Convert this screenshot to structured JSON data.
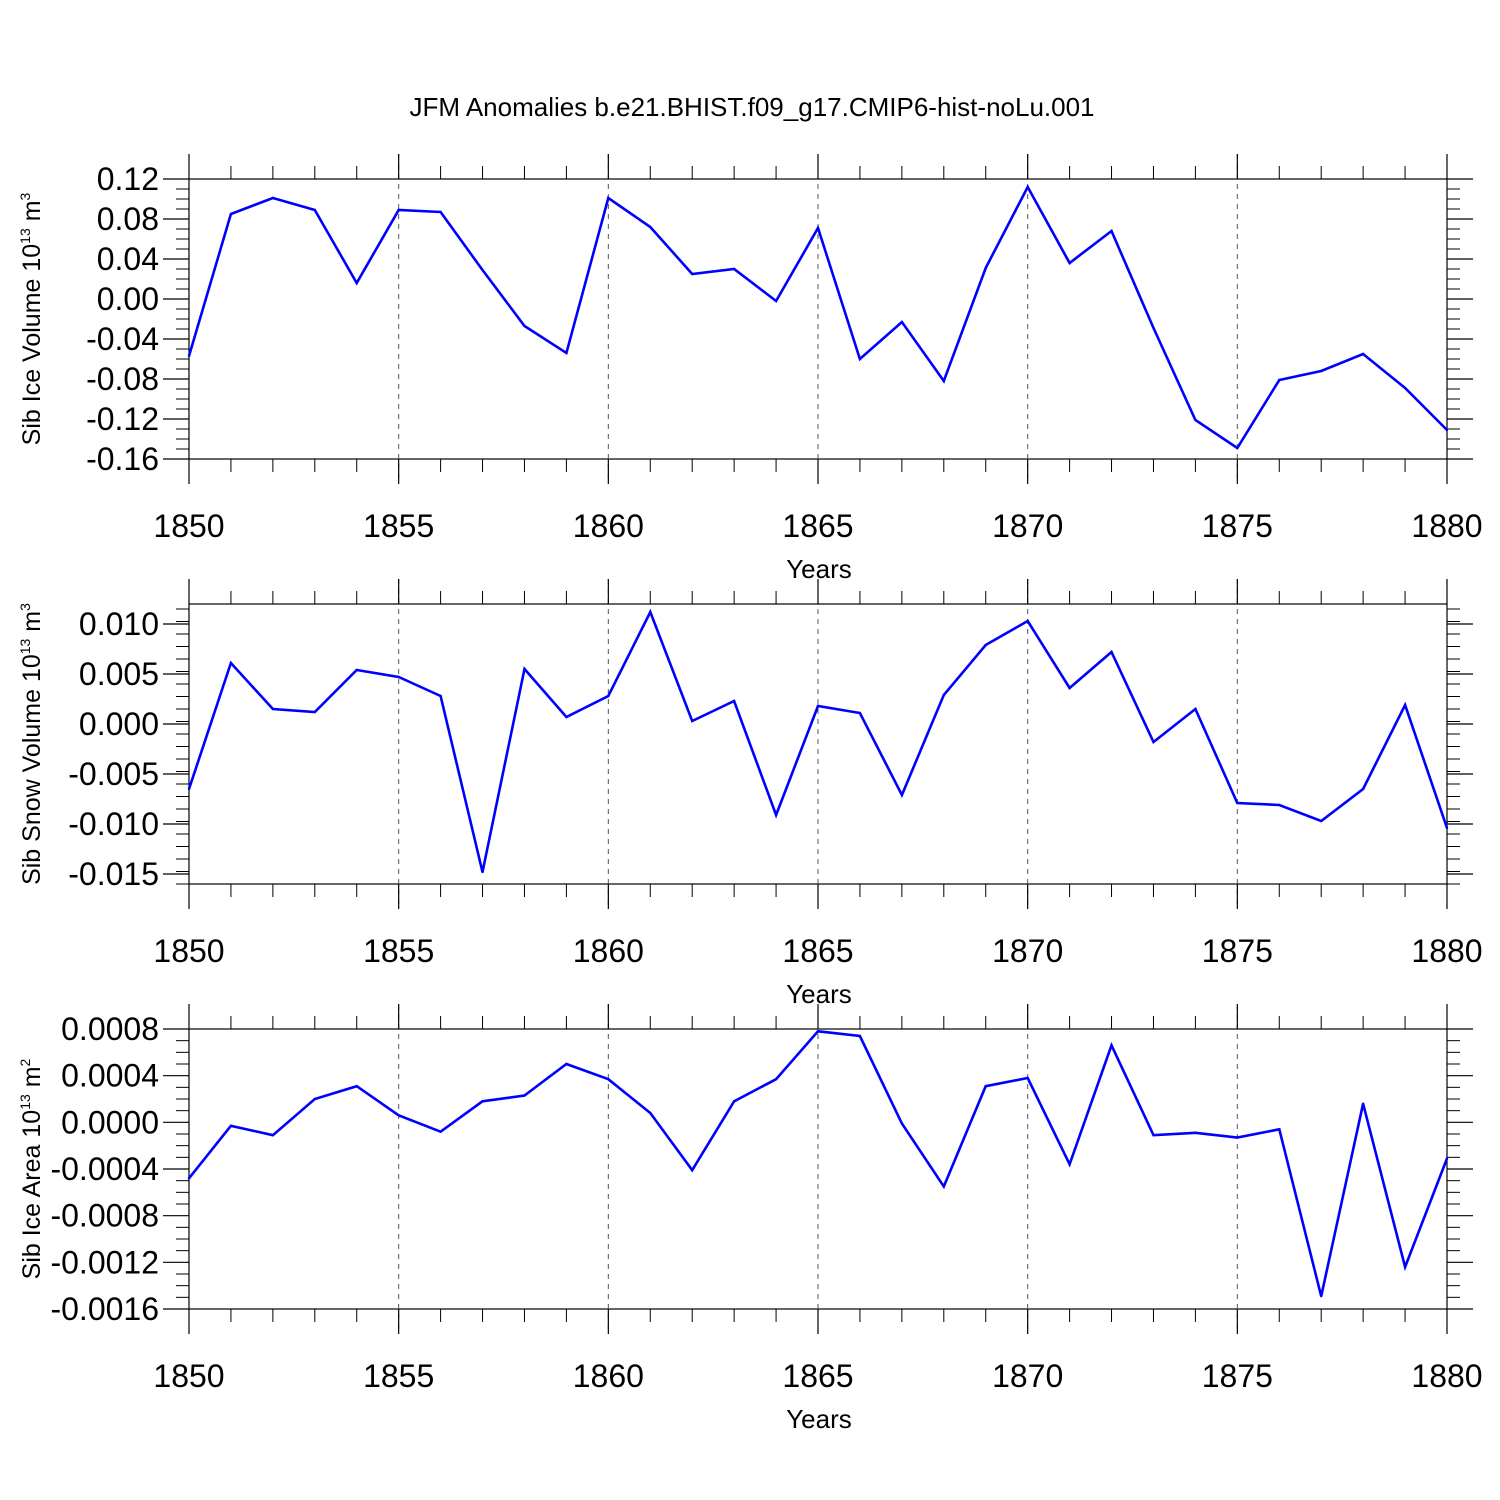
{
  "title": "JFM Anomalies b.e21.BHIST.f09_g17.CMIP6-hist-noLu.001",
  "colors": {
    "line": "#0000ff",
    "axis": "#000000",
    "grid": "#000000"
  },
  "chart_data": [
    {
      "type": "line",
      "ylabel": "Sib Ice Volume 10",
      "ylabel_exp": "13",
      "ylabel_unit": " m",
      "ylabel_unit_exp": "3",
      "xlabel": "Years",
      "xlim": [
        1850,
        1880
      ],
      "ylim": [
        -0.16,
        0.12
      ],
      "xticks": [
        1850,
        1855,
        1860,
        1865,
        1870,
        1875,
        1880
      ],
      "xtick_labels": [
        "1850",
        "1855",
        "1860",
        "1865",
        "1870",
        "1875",
        "1880"
      ],
      "yticks": [
        0.12,
        0.08,
        0.04,
        0.0,
        -0.04,
        -0.08,
        -0.12,
        -0.16
      ],
      "ytick_labels": [
        "0.12",
        "0.08",
        "0.04",
        "0.00",
        "-0.04",
        "-0.08",
        "-0.12",
        "-0.16"
      ],
      "series": [
        {
          "name": "Sib Ice Volume",
          "x": [
            1850,
            1851,
            1852,
            1853,
            1854,
            1855,
            1856,
            1857,
            1858,
            1859,
            1860,
            1861,
            1862,
            1863,
            1864,
            1865,
            1866,
            1867,
            1868,
            1869,
            1870,
            1871,
            1872,
            1873,
            1874,
            1875,
            1876,
            1877,
            1878,
            1879,
            1880
          ],
          "y": [
            -0.057,
            0.085,
            0.101,
            0.089,
            0.016,
            0.089,
            0.087,
            0.029,
            -0.027,
            -0.054,
            0.101,
            0.072,
            0.025,
            0.03,
            -0.002,
            0.071,
            -0.06,
            -0.023,
            -0.082,
            0.031,
            0.112,
            0.036,
            0.068,
            -0.029,
            -0.121,
            -0.149,
            -0.081,
            -0.072,
            -0.055,
            -0.089,
            -0.131
          ]
        }
      ]
    },
    {
      "type": "line",
      "ylabel": "Sib Snow Volume 10",
      "ylabel_exp": "13",
      "ylabel_unit": " m",
      "ylabel_unit_exp": "3",
      "xlabel": "Years",
      "xlim": [
        1850,
        1880
      ],
      "ylim": [
        -0.016,
        0.012
      ],
      "xticks": [
        1850,
        1855,
        1860,
        1865,
        1870,
        1875,
        1880
      ],
      "xtick_labels": [
        "1850",
        "1855",
        "1860",
        "1865",
        "1870",
        "1875",
        "1880"
      ],
      "yticks": [
        0.01,
        0.005,
        0.0,
        -0.005,
        -0.01,
        -0.015
      ],
      "ytick_labels": [
        "0.010",
        "0.005",
        "0.000",
        "-0.005",
        "-0.010",
        "-0.015"
      ],
      "series": [
        {
          "name": "Sib Snow Volume",
          "x": [
            1850,
            1851,
            1852,
            1853,
            1854,
            1855,
            1856,
            1857,
            1858,
            1859,
            1860,
            1861,
            1862,
            1863,
            1864,
            1865,
            1866,
            1867,
            1868,
            1869,
            1870,
            1871,
            1872,
            1873,
            1874,
            1875,
            1876,
            1877,
            1878,
            1879,
            1880
          ],
          "y": [
            -0.0065,
            0.0061,
            0.0015,
            0.0012,
            0.0054,
            0.0047,
            0.0028,
            -0.0148,
            0.0055,
            0.0007,
            0.0028,
            0.0112,
            0.0003,
            0.0023,
            -0.0091,
            0.0018,
            0.0011,
            -0.0071,
            0.0029,
            0.0079,
            0.0103,
            0.0036,
            0.0072,
            -0.0018,
            0.0015,
            -0.0079,
            -0.0081,
            -0.0097,
            -0.0065,
            0.0019,
            -0.0104
          ]
        }
      ]
    },
    {
      "type": "line",
      "ylabel": "Sib Ice Area 10",
      "ylabel_exp": "13",
      "ylabel_unit": " m",
      "ylabel_unit_exp": "2",
      "xlabel": "Years",
      "xlim": [
        1850,
        1880
      ],
      "ylim": [
        -0.0016,
        0.0008
      ],
      "xticks": [
        1850,
        1855,
        1860,
        1865,
        1870,
        1875,
        1880
      ],
      "xtick_labels": [
        "1850",
        "1855",
        "1860",
        "1865",
        "1870",
        "1875",
        "1880"
      ],
      "yticks": [
        0.0008,
        0.0004,
        0.0,
        -0.0004,
        -0.0008,
        -0.0012,
        -0.0016
      ],
      "ytick_labels": [
        "0.0008",
        "0.0004",
        "0.0000",
        "-0.0004",
        "-0.0008",
        "-0.0012",
        "-0.0016"
      ],
      "series": [
        {
          "name": "Sib Ice Area",
          "x": [
            1850,
            1851,
            1852,
            1853,
            1854,
            1855,
            1856,
            1857,
            1858,
            1859,
            1860,
            1861,
            1862,
            1863,
            1864,
            1865,
            1866,
            1867,
            1868,
            1869,
            1870,
            1871,
            1872,
            1873,
            1874,
            1875,
            1876,
            1877,
            1878,
            1879,
            1880
          ],
          "y": [
            -0.00048,
            -3e-05,
            -0.00011,
            0.0002,
            0.00031,
            6e-05,
            -8e-05,
            0.00018,
            0.00023,
            0.0005,
            0.00037,
            8e-05,
            -0.00041,
            0.00018,
            0.00037,
            0.00078,
            0.00074,
            -1e-05,
            -0.00055,
            0.00031,
            0.00038,
            -0.00036,
            0.00066,
            -0.00011,
            -9e-05,
            -0.00013,
            -6e-05,
            -0.00149,
            0.00016,
            -0.00124,
            -0.00031
          ]
        }
      ]
    }
  ]
}
